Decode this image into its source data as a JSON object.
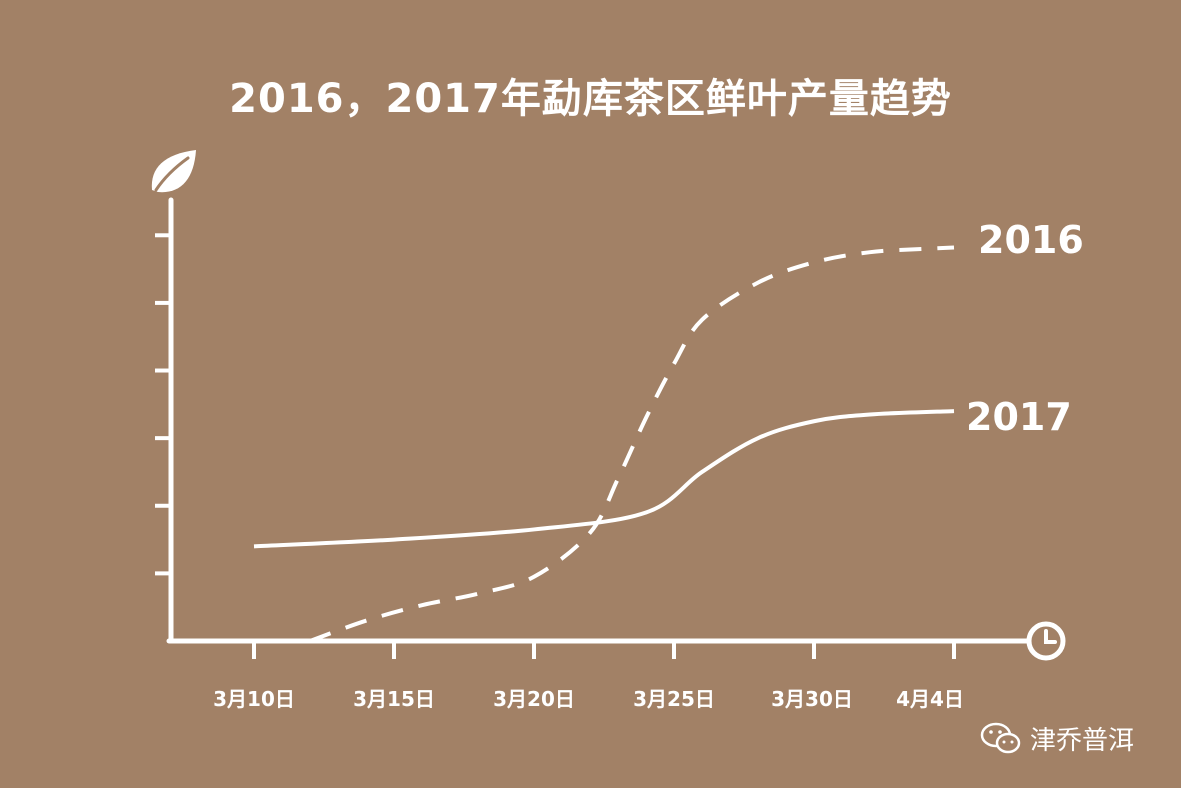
{
  "title": "2016，2017年勐库茶区鲜叶产量趋势",
  "colors": {
    "background": "#a28166",
    "foreground": "#ffffff"
  },
  "icons": {
    "y_axis": "leaf-icon",
    "x_axis": "clock-icon",
    "watermark": "wechat-icon"
  },
  "watermark": {
    "text": "津乔普洱"
  },
  "chart_data": {
    "type": "line",
    "title": "2016，2017年勐库茶区鲜叶产量趋势",
    "xlabel": "",
    "ylabel": "",
    "x_ticks": [
      "3月10日",
      "3月15日",
      "3月20日",
      "3月25日",
      "3月30日",
      "4月4日"
    ],
    "y_ticks_count": 6,
    "y_tick_values": [
      1,
      2,
      3,
      4,
      5,
      6
    ],
    "xlim": [
      "3月10日",
      "4月5日"
    ],
    "ylim": [
      0,
      6.3
    ],
    "grid": false,
    "legend": "direct labels at line ends",
    "series": [
      {
        "name": "2016",
        "style": "dashed",
        "points": [
          [
            "3月12日",
            0.0
          ],
          [
            "3月14日",
            0.3
          ],
          [
            "3月16日",
            0.53
          ],
          [
            "3月18日",
            0.7
          ],
          [
            "3月20日",
            0.95
          ],
          [
            "3月22日",
            1.6
          ],
          [
            "3月23日",
            2.4
          ],
          [
            "3月24日",
            3.3
          ],
          [
            "3月25日",
            4.1
          ],
          [
            "3月26日",
            4.75
          ],
          [
            "3月28日",
            5.3
          ],
          [
            "3月30日",
            5.6
          ],
          [
            "4月1日",
            5.75
          ],
          [
            "4月3日",
            5.8
          ],
          [
            "4月4日",
            5.82
          ]
        ]
      },
      {
        "name": "2017",
        "style": "solid",
        "points": [
          [
            "3月10日",
            1.4
          ],
          [
            "3月15日",
            1.5
          ],
          [
            "3月20日",
            1.65
          ],
          [
            "3月24日",
            1.9
          ],
          [
            "3月26日",
            2.5
          ],
          [
            "3月28日",
            3.0
          ],
          [
            "3月30日",
            3.25
          ],
          [
            "4月1日",
            3.35
          ],
          [
            "4月4日",
            3.4
          ]
        ]
      }
    ]
  }
}
